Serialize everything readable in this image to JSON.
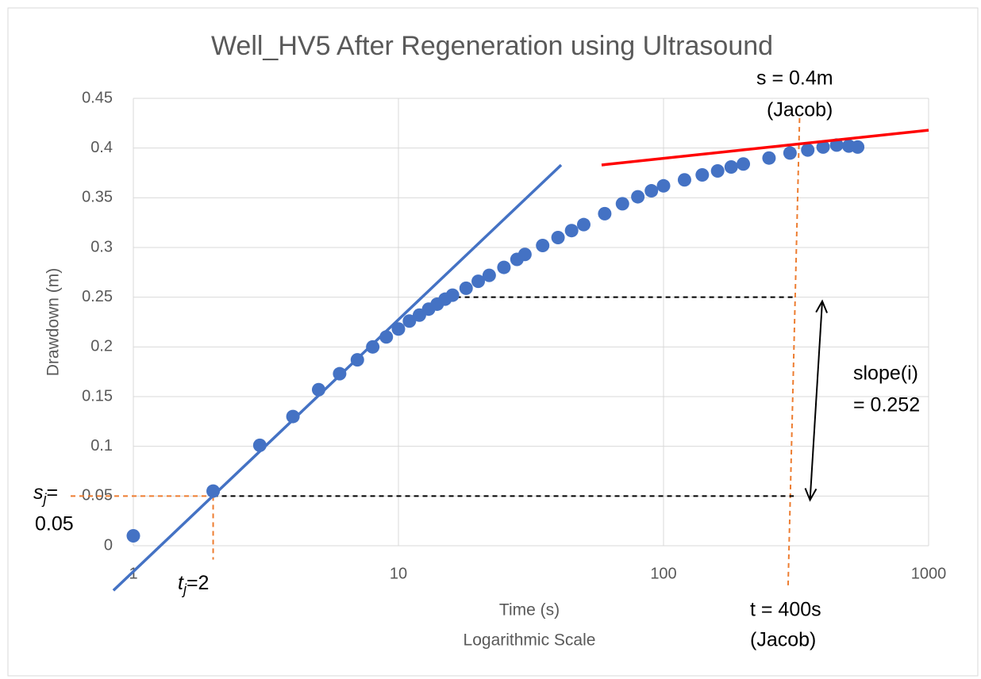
{
  "chart_data": {
    "type": "scatter",
    "title": "Well_HV5 After Regeneration using Ultrasound",
    "x_label": "Time (s)",
    "x_sublabel": "Logarithmic Scale",
    "y_label": "Drawdown (m)",
    "x_log": true,
    "grid": true,
    "xlim": [
      1,
      1000
    ],
    "xticks": [
      1,
      10,
      100,
      1000
    ],
    "ylim": [
      0,
      0.45
    ],
    "yticks": [
      0,
      0.05,
      0.1,
      0.15,
      0.2,
      0.25,
      0.3,
      0.35,
      0.4,
      0.45
    ],
    "series": [
      {
        "kind": "scatter",
        "color": "#4472c4",
        "x": [
          1,
          2,
          3,
          4,
          5,
          6,
          7,
          8,
          9,
          10,
          11,
          12,
          13,
          14,
          15,
          16,
          18,
          20,
          22,
          25,
          28,
          30,
          35,
          40,
          45,
          50,
          60,
          70,
          80,
          90,
          100,
          120,
          140,
          160,
          180,
          200,
          250,
          300,
          350,
          400,
          450,
          500,
          540
        ],
        "values": [
          0.01,
          0.055,
          0.101,
          0.13,
          0.157,
          0.173,
          0.187,
          0.2,
          0.21,
          0.218,
          0.226,
          0.232,
          0.238,
          0.243,
          0.248,
          0.252,
          0.259,
          0.266,
          0.272,
          0.28,
          0.288,
          0.293,
          0.302,
          0.31,
          0.317,
          0.323,
          0.334,
          0.344,
          0.351,
          0.357,
          0.362,
          0.368,
          0.373,
          0.377,
          0.381,
          0.384,
          0.39,
          0.395,
          0.398,
          0.401,
          0.403,
          0.402,
          0.401
        ]
      },
      {
        "kind": "line",
        "color": "#4472c4",
        "x": [
          0.841,
          41.1
        ],
        "values": [
          -0.045,
          0.383
        ]
      },
      {
        "kind": "line",
        "color": "#ff0000",
        "x": [
          58.4,
          1000
        ],
        "values": [
          0.383,
          0.418
        ]
      }
    ],
    "reference_lines": [
      {
        "color": "#ed7d31",
        "x": [
          0.58,
          2
        ],
        "values": [
          0.05,
          0.05
        ]
      },
      {
        "color": "#ed7d31",
        "x": [
          2,
          2
        ],
        "values": [
          0.05,
          -0.014
        ]
      },
      {
        "color": "#ed7d31",
        "x": [
          326,
          295
        ],
        "values": [
          0.43,
          -0.041
        ]
      },
      {
        "color": "#000000",
        "x": [
          2,
          310
        ],
        "values": [
          0.05,
          0.05
        ]
      },
      {
        "color": "#000000",
        "x": [
          16.5,
          310
        ],
        "values": [
          0.25,
          0.25
        ]
      }
    ],
    "arrow": {
      "x": [
        397,
        357
      ],
      "values": [
        0.246,
        0.046
      ]
    },
    "annotations": {
      "s_label": "s = 0.4m",
      "s_jacob": "(Jacob)",
      "slope_label": "slope(i)",
      "slope_value": "= 0.252",
      "t_label": "t = 400s",
      "t_jacob": "(Jacob)",
      "sj": {
        "symbol": "s",
        "sub": "j",
        "rest": "="
      },
      "sj_value": "0.05",
      "tj": {
        "symbol": "t",
        "sub": "j",
        "rest": "=2"
      }
    }
  }
}
